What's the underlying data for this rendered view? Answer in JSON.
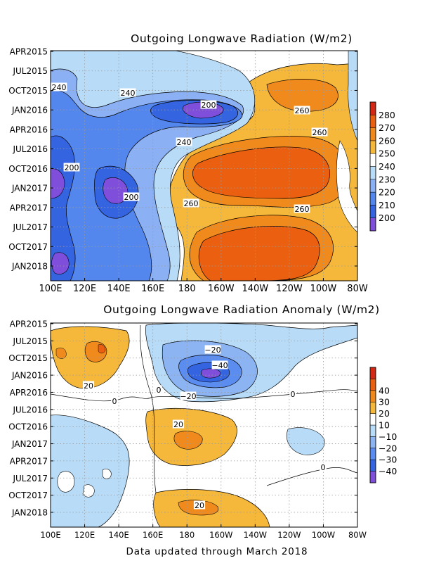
{
  "footer": "Data updated through March 2018",
  "colors": {
    "frame": "#000000",
    "grid": "#9a9a9a",
    "contour": "#000000"
  },
  "chart_data": [
    {
      "type": "heatmap",
      "title": "Outgoing Longwave Radiation (W/m2)",
      "x_tick_labels": [
        "100E",
        "120E",
        "140E",
        "160E",
        "180",
        "160W",
        "140W",
        "120W",
        "100W",
        "80W"
      ],
      "y_tick_labels": [
        "APR2015",
        "JUL2015",
        "OCT2015",
        "JAN2016",
        "APR2016",
        "JUL2016",
        "OCT2016",
        "JAN2017",
        "APR2017",
        "JUL2017",
        "OCT2017",
        "JAN2018"
      ],
      "legend_placement": "right",
      "legend": [
        {
          "label": "",
          "color": "#7f4fdc"
        },
        {
          "label": "200",
          "color": "#3564e0"
        },
        {
          "label": "210",
          "color": "#5487ee"
        },
        {
          "label": "220",
          "color": "#8cb0f4"
        },
        {
          "label": "230",
          "color": "#b8dcf8"
        },
        {
          "label": "240",
          "color": "#ffffff"
        },
        {
          "label": "250",
          "color": "#f5b83a"
        },
        {
          "label": "260",
          "color": "#f08a1c"
        },
        {
          "label": "270",
          "color": "#ea6010"
        },
        {
          "label": "280",
          "color": "#d42814"
        }
      ],
      "contour_labels": [
        "240",
        "240",
        "200",
        "260",
        "260",
        "240",
        "200",
        "200",
        "260",
        "260"
      ],
      "regions": {
        "warm_east_pacific_2016": 270,
        "warm_east_pacific_2017_2018": 270,
        "cool_warm_pool_core": 200
      }
    },
    {
      "type": "heatmap",
      "title": "Outgoing Longwave Radiation Anomaly (W/m2)",
      "x_tick_labels": [
        "100E",
        "120E",
        "140E",
        "160E",
        "180",
        "160W",
        "140W",
        "120W",
        "100W",
        "80W"
      ],
      "y_tick_labels": [
        "APR2015",
        "JUL2015",
        "OCT2015",
        "JAN2016",
        "APR2016",
        "JUL2016",
        "OCT2016",
        "JAN2017",
        "APR2017",
        "JUL2017",
        "OCT2017",
        "JAN2018"
      ],
      "legend_placement": "right",
      "legend": [
        {
          "label": "",
          "color": "#7f4fdc"
        },
        {
          "label": "−40",
          "color": "#3564e0"
        },
        {
          "label": "−30",
          "color": "#5b8cf0"
        },
        {
          "label": "−20",
          "color": "#8cb4f2"
        },
        {
          "label": "−10",
          "color": "#b8dcf8"
        },
        {
          "label": "10",
          "color": "#ffffff"
        },
        {
          "label": "20",
          "color": "#f5b83a"
        },
        {
          "label": "30",
          "color": "#f08a1c"
        },
        {
          "label": "40",
          "color": "#ea6010"
        },
        {
          "label": "",
          "color": "#d42814"
        }
      ],
      "contour_labels": [
        "−20",
        "−40",
        "−20",
        "20",
        "0",
        "0",
        "0",
        "20",
        "20",
        "0"
      ],
      "regions": {
        "dateline_negative_anomaly_jan2016": -40,
        "positive_anomaly_2016_2017": 20,
        "positive_anomaly_2017_2018": 20
      }
    }
  ]
}
